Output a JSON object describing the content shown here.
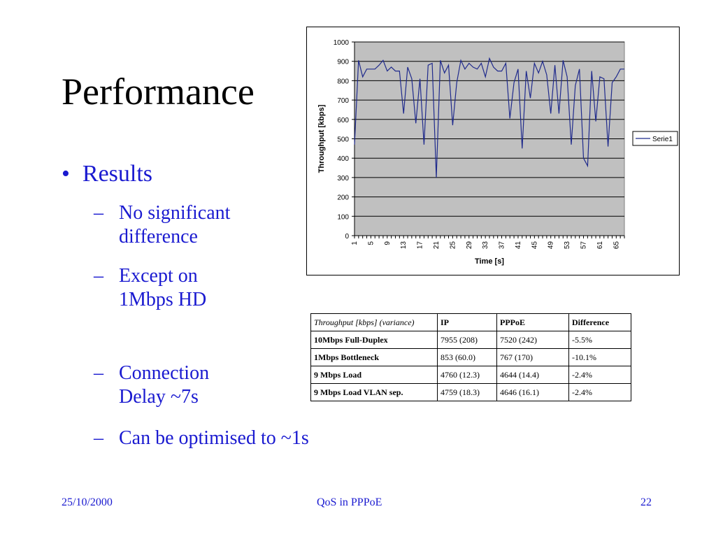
{
  "slide": {
    "title": "Performance",
    "bullet": "Results",
    "subbullets": [
      {
        "dash": "–",
        "lines": [
          "No significant",
          "difference"
        ]
      },
      {
        "dash": "–",
        "lines": [
          "Except on",
          "1Mbps HD"
        ]
      },
      {
        "dash": "–",
        "lines": [
          "Connection",
          "Delay ~7s"
        ]
      },
      {
        "dash": "–",
        "lines": [
          "Can be optimised to ~1s"
        ]
      }
    ]
  },
  "chart_data": {
    "type": "line",
    "title": "",
    "xlabel": "Time [s]",
    "ylabel": "Throughput [kbps]",
    "ylim": [
      0,
      1000
    ],
    "yticks": [
      0,
      100,
      200,
      300,
      400,
      500,
      600,
      700,
      800,
      900,
      1000
    ],
    "xticks": [
      "1",
      "5",
      "9",
      "13",
      "17",
      "21",
      "25",
      "29",
      "33",
      "37",
      "41",
      "45",
      "49",
      "53",
      "57",
      "61",
      "65"
    ],
    "grid": true,
    "legend": "right",
    "series": [
      {
        "name": "Serie1",
        "color": "#1f2a8c",
        "x": [
          1,
          2,
          3,
          4,
          5,
          6,
          7,
          8,
          9,
          10,
          11,
          12,
          13,
          14,
          15,
          16,
          17,
          18,
          19,
          20,
          21,
          22,
          23,
          24,
          25,
          26,
          27,
          28,
          29,
          30,
          31,
          32,
          33,
          34,
          35,
          36,
          37,
          38,
          39,
          40,
          41,
          42,
          43,
          44,
          45,
          46,
          47,
          48,
          49,
          50,
          51,
          52,
          53,
          54,
          55,
          56,
          57,
          58,
          59,
          60,
          61,
          62,
          63,
          64,
          65,
          66,
          67
        ],
        "values": [
          470,
          905,
          820,
          860,
          860,
          860,
          880,
          905,
          850,
          870,
          850,
          850,
          630,
          870,
          810,
          580,
          810,
          470,
          880,
          890,
          300,
          905,
          840,
          880,
          570,
          790,
          905,
          860,
          890,
          870,
          860,
          890,
          820,
          915,
          870,
          850,
          850,
          890,
          605,
          790,
          860,
          450,
          850,
          710,
          890,
          840,
          900,
          830,
          630,
          880,
          630,
          905,
          820,
          470,
          775,
          860,
          400,
          360,
          850,
          590,
          820,
          810,
          460,
          790,
          820,
          860,
          860
        ]
      }
    ]
  },
  "table": {
    "headers": [
      "Throughput [kbps] (variance)",
      "IP",
      "PPPoE",
      "Difference"
    ],
    "rows": [
      [
        "10Mbps Full-Duplex",
        "7955 (208)",
        "7520 (242)",
        "-5.5%"
      ],
      [
        "1Mbps Bottleneck",
        "853 (60.0)",
        "767 (170)",
        "-10.1%"
      ],
      [
        "9 Mbps Load",
        "4760 (12.3)",
        "4644 (14.4)",
        "-2.4%"
      ],
      [
        "9 Mbps Load VLAN sep.",
        "4759 (18.3)",
        "4646 (16.1)",
        "-2.4%"
      ]
    ]
  },
  "footer": {
    "date": "25/10/2000",
    "center": "QoS in PPPoE",
    "page": "22"
  }
}
